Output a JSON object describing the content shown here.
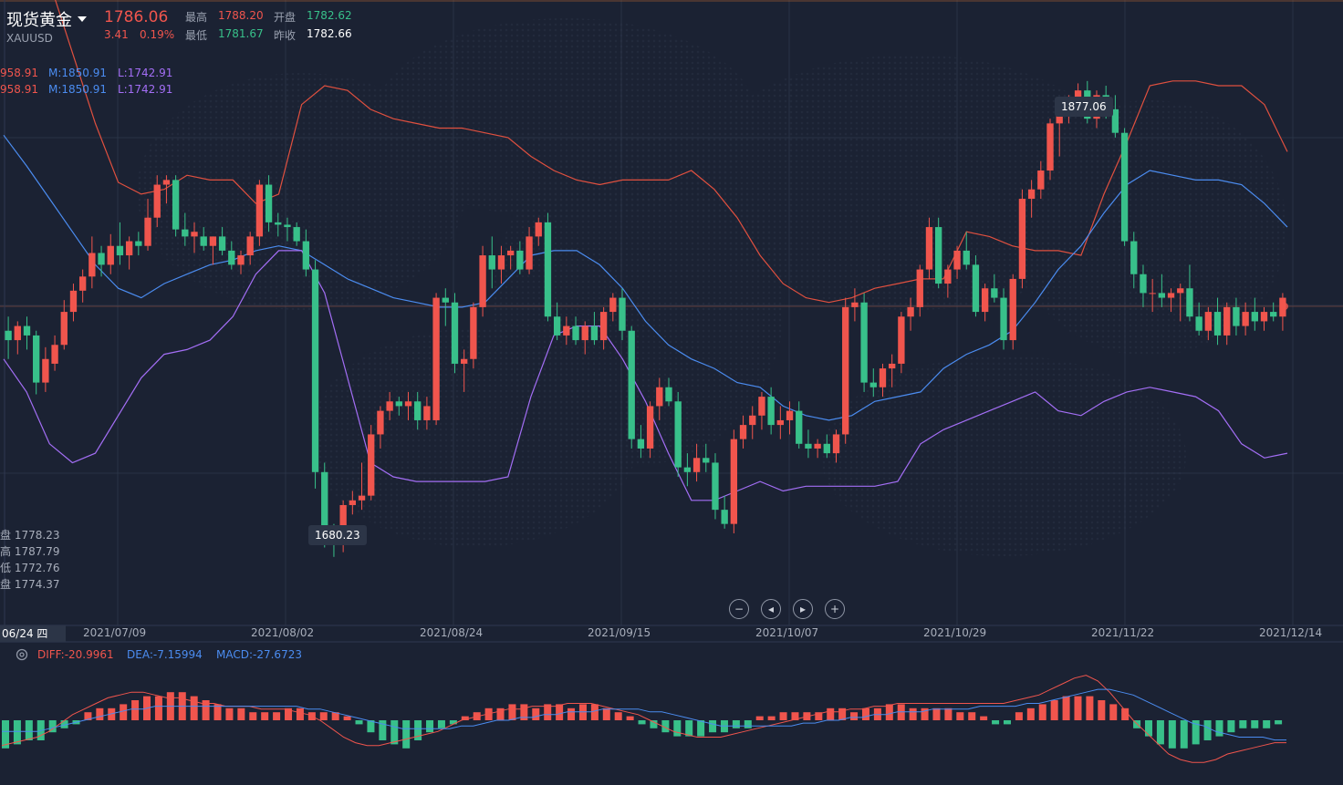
{
  "header": {
    "title": "现货黄金",
    "symbol": "XAUUSD",
    "price": "1786.06",
    "change": "3.41",
    "change_pct": "0.19%",
    "high_label": "最高",
    "high_value": "1788.20",
    "open_label": "开盘",
    "open_value": "1782.62",
    "low_label": "最低",
    "low_value": "1781.67",
    "prev_label": "昨收",
    "prev_value": "1782.66"
  },
  "boll_indicator": {
    "row1": {
      "upper": "958.91",
      "mid": "M:1850.91",
      "lower": "L:1742.91"
    },
    "row2": {
      "upper": "958.91",
      "mid": "M:1850.91",
      "lower": "L:1742.91"
    }
  },
  "ohlc_panel": [
    {
      "label": "盘",
      "value": "1778.23"
    },
    {
      "label": "高",
      "value": "1787.79"
    },
    {
      "label": "低",
      "value": "1772.76"
    },
    {
      "label": "盘",
      "value": "1774.37"
    }
  ],
  "annotations": {
    "max_label": "1877.06",
    "min_label": "1680.23"
  },
  "controls": {
    "zoom_out": "−",
    "prev": "◂",
    "next": "▸",
    "zoom_in": "+"
  },
  "date_axis": {
    "selected": "06/24 四",
    "ticks": [
      "2021/07/09",
      "2021/08/02",
      "2021/08/24",
      "2021/09/15",
      "2021/10/07",
      "2021/10/29",
      "2021/11/22",
      "2021/12/14"
    ]
  },
  "macd_indicator": {
    "diff": "DIFF:-20.9961",
    "dea": "DEA:-7.15994",
    "macd": "MACD:-27.6723"
  },
  "colors": {
    "background": "#1b2233",
    "up": "#f0554d",
    "down": "#38c08a",
    "mid_band": "#4b8cf0",
    "lower_band": "#a36ef5",
    "upper_band": "#e0503f"
  },
  "chart_data": {
    "type": "candlestick",
    "price_ylim": [
      1650,
      1900
    ],
    "candles": [
      {
        "o": 1772,
        "h": 1778,
        "l": 1760,
        "c": 1768
      },
      {
        "o": 1768,
        "h": 1776,
        "l": 1762,
        "c": 1774
      },
      {
        "o": 1774,
        "h": 1778,
        "l": 1764,
        "c": 1770
      },
      {
        "o": 1770,
        "h": 1772,
        "l": 1745,
        "c": 1750
      },
      {
        "o": 1750,
        "h": 1765,
        "l": 1746,
        "c": 1760
      },
      {
        "o": 1758,
        "h": 1770,
        "l": 1755,
        "c": 1766
      },
      {
        "o": 1766,
        "h": 1785,
        "l": 1764,
        "c": 1780
      },
      {
        "o": 1780,
        "h": 1792,
        "l": 1776,
        "c": 1789
      },
      {
        "o": 1789,
        "h": 1798,
        "l": 1784,
        "c": 1795
      },
      {
        "o": 1795,
        "h": 1812,
        "l": 1790,
        "c": 1805
      },
      {
        "o": 1805,
        "h": 1808,
        "l": 1795,
        "c": 1800
      },
      {
        "o": 1800,
        "h": 1813,
        "l": 1796,
        "c": 1808
      },
      {
        "o": 1808,
        "h": 1818,
        "l": 1800,
        "c": 1804
      },
      {
        "o": 1804,
        "h": 1812,
        "l": 1798,
        "c": 1810
      },
      {
        "o": 1810,
        "h": 1814,
        "l": 1804,
        "c": 1808
      },
      {
        "o": 1808,
        "h": 1828,
        "l": 1806,
        "c": 1820
      },
      {
        "o": 1820,
        "h": 1838,
        "l": 1816,
        "c": 1834
      },
      {
        "o": 1834,
        "h": 1838,
        "l": 1826,
        "c": 1836
      },
      {
        "o": 1836,
        "h": 1838,
        "l": 1812,
        "c": 1815
      },
      {
        "o": 1815,
        "h": 1822,
        "l": 1808,
        "c": 1812
      },
      {
        "o": 1812,
        "h": 1818,
        "l": 1805,
        "c": 1814
      },
      {
        "o": 1812,
        "h": 1816,
        "l": 1806,
        "c": 1808
      },
      {
        "o": 1808,
        "h": 1812,
        "l": 1800,
        "c": 1812
      },
      {
        "o": 1812,
        "h": 1816,
        "l": 1804,
        "c": 1806
      },
      {
        "o": 1806,
        "h": 1810,
        "l": 1798,
        "c": 1800
      },
      {
        "o": 1800,
        "h": 1806,
        "l": 1796,
        "c": 1804
      },
      {
        "o": 1804,
        "h": 1814,
        "l": 1800,
        "c": 1812
      },
      {
        "o": 1812,
        "h": 1836,
        "l": 1808,
        "c": 1834
      },
      {
        "o": 1834,
        "h": 1838,
        "l": 1814,
        "c": 1818
      },
      {
        "o": 1818,
        "h": 1822,
        "l": 1812,
        "c": 1817
      },
      {
        "o": 1817,
        "h": 1820,
        "l": 1810,
        "c": 1816
      },
      {
        "o": 1816,
        "h": 1818,
        "l": 1808,
        "c": 1810
      },
      {
        "o": 1810,
        "h": 1815,
        "l": 1795,
        "c": 1798
      },
      {
        "o": 1798,
        "h": 1802,
        "l": 1705,
        "c": 1712
      },
      {
        "o": 1712,
        "h": 1716,
        "l": 1680,
        "c": 1686
      },
      {
        "o": 1686,
        "h": 1690,
        "l": 1676,
        "c": 1684
      },
      {
        "o": 1684,
        "h": 1700,
        "l": 1678,
        "c": 1698
      },
      {
        "o": 1698,
        "h": 1704,
        "l": 1694,
        "c": 1700
      },
      {
        "o": 1700,
        "h": 1716,
        "l": 1696,
        "c": 1702
      },
      {
        "o": 1702,
        "h": 1732,
        "l": 1700,
        "c": 1728
      },
      {
        "o": 1728,
        "h": 1740,
        "l": 1722,
        "c": 1738
      },
      {
        "o": 1738,
        "h": 1746,
        "l": 1734,
        "c": 1742
      },
      {
        "o": 1742,
        "h": 1744,
        "l": 1736,
        "c": 1740
      },
      {
        "o": 1740,
        "h": 1746,
        "l": 1734,
        "c": 1742
      },
      {
        "o": 1742,
        "h": 1746,
        "l": 1730,
        "c": 1734
      },
      {
        "o": 1734,
        "h": 1744,
        "l": 1730,
        "c": 1740
      },
      {
        "o": 1734,
        "h": 1788,
        "l": 1732,
        "c": 1786
      },
      {
        "o": 1786,
        "h": 1790,
        "l": 1774,
        "c": 1784
      },
      {
        "o": 1784,
        "h": 1788,
        "l": 1754,
        "c": 1758
      },
      {
        "o": 1758,
        "h": 1764,
        "l": 1746,
        "c": 1760
      },
      {
        "o": 1760,
        "h": 1784,
        "l": 1756,
        "c": 1782
      },
      {
        "o": 1782,
        "h": 1808,
        "l": 1778,
        "c": 1804
      },
      {
        "o": 1804,
        "h": 1812,
        "l": 1790,
        "c": 1798
      },
      {
        "o": 1798,
        "h": 1808,
        "l": 1792,
        "c": 1804
      },
      {
        "o": 1804,
        "h": 1808,
        "l": 1798,
        "c": 1806
      },
      {
        "o": 1806,
        "h": 1810,
        "l": 1796,
        "c": 1798
      },
      {
        "o": 1798,
        "h": 1816,
        "l": 1796,
        "c": 1812
      },
      {
        "o": 1812,
        "h": 1820,
        "l": 1808,
        "c": 1818
      },
      {
        "o": 1818,
        "h": 1822,
        "l": 1776,
        "c": 1778
      },
      {
        "o": 1778,
        "h": 1784,
        "l": 1768,
        "c": 1770
      },
      {
        "o": 1770,
        "h": 1778,
        "l": 1766,
        "c": 1774
      },
      {
        "o": 1774,
        "h": 1778,
        "l": 1766,
        "c": 1768
      },
      {
        "o": 1768,
        "h": 1776,
        "l": 1762,
        "c": 1774
      },
      {
        "o": 1774,
        "h": 1780,
        "l": 1766,
        "c": 1768
      },
      {
        "o": 1768,
        "h": 1782,
        "l": 1764,
        "c": 1780
      },
      {
        "o": 1780,
        "h": 1788,
        "l": 1776,
        "c": 1786
      },
      {
        "o": 1786,
        "h": 1790,
        "l": 1768,
        "c": 1772
      },
      {
        "o": 1772,
        "h": 1774,
        "l": 1722,
        "c": 1726
      },
      {
        "o": 1726,
        "h": 1732,
        "l": 1718,
        "c": 1722
      },
      {
        "o": 1722,
        "h": 1742,
        "l": 1718,
        "c": 1740
      },
      {
        "o": 1740,
        "h": 1752,
        "l": 1734,
        "c": 1748
      },
      {
        "o": 1748,
        "h": 1752,
        "l": 1740,
        "c": 1742
      },
      {
        "o": 1742,
        "h": 1746,
        "l": 1710,
        "c": 1714
      },
      {
        "o": 1714,
        "h": 1720,
        "l": 1706,
        "c": 1712
      },
      {
        "o": 1712,
        "h": 1724,
        "l": 1708,
        "c": 1718
      },
      {
        "o": 1718,
        "h": 1724,
        "l": 1712,
        "c": 1716
      },
      {
        "o": 1716,
        "h": 1720,
        "l": 1692,
        "c": 1696
      },
      {
        "o": 1696,
        "h": 1702,
        "l": 1688,
        "c": 1690
      },
      {
        "o": 1690,
        "h": 1730,
        "l": 1686,
        "c": 1726
      },
      {
        "o": 1726,
        "h": 1736,
        "l": 1722,
        "c": 1732
      },
      {
        "o": 1732,
        "h": 1740,
        "l": 1726,
        "c": 1736
      },
      {
        "o": 1736,
        "h": 1746,
        "l": 1730,
        "c": 1744
      },
      {
        "o": 1744,
        "h": 1748,
        "l": 1728,
        "c": 1732
      },
      {
        "o": 1732,
        "h": 1740,
        "l": 1726,
        "c": 1734
      },
      {
        "o": 1734,
        "h": 1742,
        "l": 1728,
        "c": 1738
      },
      {
        "o": 1738,
        "h": 1742,
        "l": 1722,
        "c": 1724
      },
      {
        "o": 1724,
        "h": 1730,
        "l": 1718,
        "c": 1722
      },
      {
        "o": 1722,
        "h": 1726,
        "l": 1718,
        "c": 1724
      },
      {
        "o": 1724,
        "h": 1728,
        "l": 1718,
        "c": 1720
      },
      {
        "o": 1720,
        "h": 1730,
        "l": 1716,
        "c": 1728
      },
      {
        "o": 1728,
        "h": 1786,
        "l": 1724,
        "c": 1782
      },
      {
        "o": 1782,
        "h": 1790,
        "l": 1776,
        "c": 1784
      },
      {
        "o": 1784,
        "h": 1788,
        "l": 1746,
        "c": 1750
      },
      {
        "o": 1750,
        "h": 1756,
        "l": 1744,
        "c": 1748
      },
      {
        "o": 1748,
        "h": 1758,
        "l": 1744,
        "c": 1756
      },
      {
        "o": 1756,
        "h": 1762,
        "l": 1748,
        "c": 1758
      },
      {
        "o": 1758,
        "h": 1780,
        "l": 1754,
        "c": 1778
      },
      {
        "o": 1778,
        "h": 1786,
        "l": 1772,
        "c": 1782
      },
      {
        "o": 1782,
        "h": 1800,
        "l": 1778,
        "c": 1798
      },
      {
        "o": 1798,
        "h": 1820,
        "l": 1794,
        "c": 1816
      },
      {
        "o": 1816,
        "h": 1820,
        "l": 1790,
        "c": 1792
      },
      {
        "o": 1792,
        "h": 1800,
        "l": 1786,
        "c": 1798
      },
      {
        "o": 1798,
        "h": 1808,
        "l": 1794,
        "c": 1806
      },
      {
        "o": 1806,
        "h": 1814,
        "l": 1798,
        "c": 1800
      },
      {
        "o": 1800,
        "h": 1804,
        "l": 1778,
        "c": 1780
      },
      {
        "o": 1780,
        "h": 1792,
        "l": 1776,
        "c": 1790
      },
      {
        "o": 1790,
        "h": 1796,
        "l": 1784,
        "c": 1786
      },
      {
        "o": 1786,
        "h": 1790,
        "l": 1764,
        "c": 1768
      },
      {
        "o": 1768,
        "h": 1796,
        "l": 1764,
        "c": 1794
      },
      {
        "o": 1794,
        "h": 1832,
        "l": 1790,
        "c": 1828
      },
      {
        "o": 1828,
        "h": 1836,
        "l": 1820,
        "c": 1832
      },
      {
        "o": 1832,
        "h": 1844,
        "l": 1828,
        "c": 1840
      },
      {
        "o": 1840,
        "h": 1862,
        "l": 1836,
        "c": 1860
      },
      {
        "o": 1860,
        "h": 1870,
        "l": 1846,
        "c": 1866
      },
      {
        "o": 1866,
        "h": 1872,
        "l": 1860,
        "c": 1870
      },
      {
        "o": 1870,
        "h": 1877,
        "l": 1864,
        "c": 1874
      },
      {
        "o": 1874,
        "h": 1878,
        "l": 1860,
        "c": 1862
      },
      {
        "o": 1862,
        "h": 1874,
        "l": 1858,
        "c": 1872
      },
      {
        "o": 1872,
        "h": 1876,
        "l": 1862,
        "c": 1866
      },
      {
        "o": 1866,
        "h": 1872,
        "l": 1854,
        "c": 1856
      },
      {
        "o": 1856,
        "h": 1858,
        "l": 1808,
        "c": 1810
      },
      {
        "o": 1810,
        "h": 1814,
        "l": 1790,
        "c": 1796
      },
      {
        "o": 1796,
        "h": 1800,
        "l": 1782,
        "c": 1788
      },
      {
        "o": 1788,
        "h": 1794,
        "l": 1780,
        "c": 1788
      },
      {
        "o": 1788,
        "h": 1796,
        "l": 1782,
        "c": 1786
      },
      {
        "o": 1786,
        "h": 1790,
        "l": 1780,
        "c": 1788
      },
      {
        "o": 1788,
        "h": 1792,
        "l": 1776,
        "c": 1790
      },
      {
        "o": 1790,
        "h": 1800,
        "l": 1776,
        "c": 1778
      },
      {
        "o": 1778,
        "h": 1784,
        "l": 1770,
        "c": 1772
      },
      {
        "o": 1772,
        "h": 1782,
        "l": 1768,
        "c": 1780
      },
      {
        "o": 1780,
        "h": 1786,
        "l": 1766,
        "c": 1770
      },
      {
        "o": 1770,
        "h": 1784,
        "l": 1766,
        "c": 1782
      },
      {
        "o": 1782,
        "h": 1786,
        "l": 1770,
        "c": 1774
      },
      {
        "o": 1774,
        "h": 1784,
        "l": 1770,
        "c": 1780
      },
      {
        "o": 1780,
        "h": 1786,
        "l": 1772,
        "c": 1776
      },
      {
        "o": 1776,
        "h": 1782,
        "l": 1772,
        "c": 1780
      },
      {
        "o": 1780,
        "h": 1784,
        "l": 1776,
        "c": 1778
      },
      {
        "o": 1778,
        "h": 1788,
        "l": 1772,
        "c": 1786
      }
    ],
    "upper_band": [
      1958,
      1945,
      1920,
      1890,
      1860,
      1835,
      1830,
      1832,
      1838,
      1836,
      1836,
      1826,
      1830,
      1868,
      1876,
      1874,
      1866,
      1862,
      1860,
      1858,
      1858,
      1856,
      1854,
      1846,
      1840,
      1836,
      1834,
      1836,
      1836,
      1836,
      1840,
      1832,
      1820,
      1804,
      1792,
      1786,
      1784,
      1786,
      1790,
      1792,
      1794,
      1794,
      1814,
      1812,
      1808,
      1806,
      1806,
      1804,
      1830,
      1852,
      1876,
      1878,
      1878,
      1876,
      1876,
      1868,
      1848
    ],
    "mid_band": [
      1855,
      1842,
      1828,
      1814,
      1800,
      1790,
      1786,
      1792,
      1796,
      1800,
      1802,
      1806,
      1808,
      1806,
      1800,
      1794,
      1790,
      1786,
      1784,
      1782,
      1782,
      1784,
      1794,
      1804,
      1806,
      1806,
      1800,
      1790,
      1776,
      1766,
      1760,
      1756,
      1750,
      1748,
      1740,
      1736,
      1734,
      1736,
      1742,
      1744,
      1746,
      1756,
      1762,
      1766,
      1772,
      1784,
      1798,
      1808,
      1822,
      1834,
      1840,
      1838,
      1836,
      1836,
      1834,
      1826,
      1816
    ],
    "lower_band": [
      1760,
      1746,
      1724,
      1716,
      1720,
      1736,
      1752,
      1762,
      1764,
      1768,
      1778,
      1796,
      1806,
      1806,
      1788,
      1752,
      1716,
      1710,
      1708,
      1708,
      1708,
      1708,
      1710,
      1744,
      1770,
      1774,
      1774,
      1760,
      1742,
      1720,
      1700,
      1700,
      1704,
      1708,
      1704,
      1706,
      1706,
      1706,
      1706,
      1708,
      1724,
      1730,
      1734,
      1738,
      1742,
      1746,
      1738,
      1736,
      1742,
      1746,
      1748,
      1746,
      1744,
      1738,
      1724,
      1718,
      1720
    ],
    "macd_hist": [
      -7,
      -6,
      -5,
      -5,
      -3,
      -2,
      -1,
      2,
      3,
      3,
      4,
      5,
      6,
      6,
      7,
      7,
      6,
      5,
      4,
      3,
      3,
      2,
      2,
      2,
      3,
      3,
      2,
      2,
      2,
      1,
      -1,
      -3,
      -5,
      -6,
      -7,
      -5,
      -3,
      -2,
      -1,
      1,
      2,
      3,
      3,
      4,
      4,
      3,
      4,
      4,
      3,
      4,
      4,
      3,
      2,
      1,
      -1,
      -2,
      -3,
      -4,
      -4,
      -4,
      -3,
      -3,
      -2,
      -2,
      1,
      1,
      2,
      2,
      2,
      2,
      3,
      3,
      2,
      3,
      3,
      4,
      4,
      3,
      3,
      3,
      3,
      2,
      2,
      1,
      -1,
      -1,
      2,
      3,
      4,
      5,
      6,
      6,
      6,
      5,
      4,
      3,
      -2,
      -4,
      -6,
      -7,
      -7,
      -6,
      -5,
      -4,
      -3,
      -2,
      -2,
      -2,
      -1
    ],
    "macd_diff": [
      -9,
      -8,
      -7,
      -6,
      -4,
      -1,
      2,
      4,
      6,
      8,
      9,
      10,
      10,
      9,
      8,
      8,
      7,
      6,
      6,
      5,
      5,
      5,
      4,
      4,
      4,
      3,
      2,
      0,
      -3,
      -6,
      -8,
      -9,
      -9,
      -8,
      -7,
      -6,
      -5,
      -4,
      -2,
      0,
      1,
      2,
      3,
      4,
      4,
      5,
      5,
      5,
      6,
      6,
      6,
      5,
      4,
      3,
      2,
      0,
      -2,
      -4,
      -5,
      -6,
      -6,
      -6,
      -5,
      -4,
      -3,
      -2,
      -1,
      0,
      1,
      2,
      3,
      3,
      4,
      4,
      5,
      5,
      6,
      6,
      6,
      6,
      6,
      6,
      6,
      6,
      6,
      6,
      7,
      8,
      9,
      11,
      13,
      15,
      16,
      14,
      10,
      5,
      0,
      -4,
      -8,
      -12,
      -14,
      -15,
      -15,
      -14,
      -12,
      -11,
      -10,
      -9,
      -8,
      -8
    ],
    "macd_dea": [
      -4,
      -4,
      -4,
      -4,
      -3,
      -2,
      -1,
      0,
      1,
      2,
      3,
      4,
      4,
      5,
      5,
      5,
      5,
      5,
      5,
      5,
      5,
      5,
      5,
      5,
      5,
      5,
      4,
      4,
      3,
      2,
      1,
      0,
      -1,
      -2,
      -3,
      -3,
      -3,
      -3,
      -3,
      -2,
      -2,
      -1,
      0,
      0,
      1,
      1,
      2,
      2,
      3,
      3,
      3,
      4,
      4,
      4,
      4,
      3,
      3,
      2,
      1,
      0,
      -1,
      -2,
      -2,
      -2,
      -2,
      -2,
      -2,
      -2,
      -1,
      -1,
      0,
      0,
      1,
      1,
      2,
      2,
      3,
      3,
      3,
      4,
      4,
      4,
      4,
      5,
      5,
      5,
      5,
      6,
      6,
      7,
      8,
      9,
      10,
      11,
      11,
      10,
      9,
      7,
      5,
      3,
      1,
      -1,
      -2,
      -4,
      -5,
      -6,
      -6,
      -6,
      -7,
      -7
    ]
  }
}
